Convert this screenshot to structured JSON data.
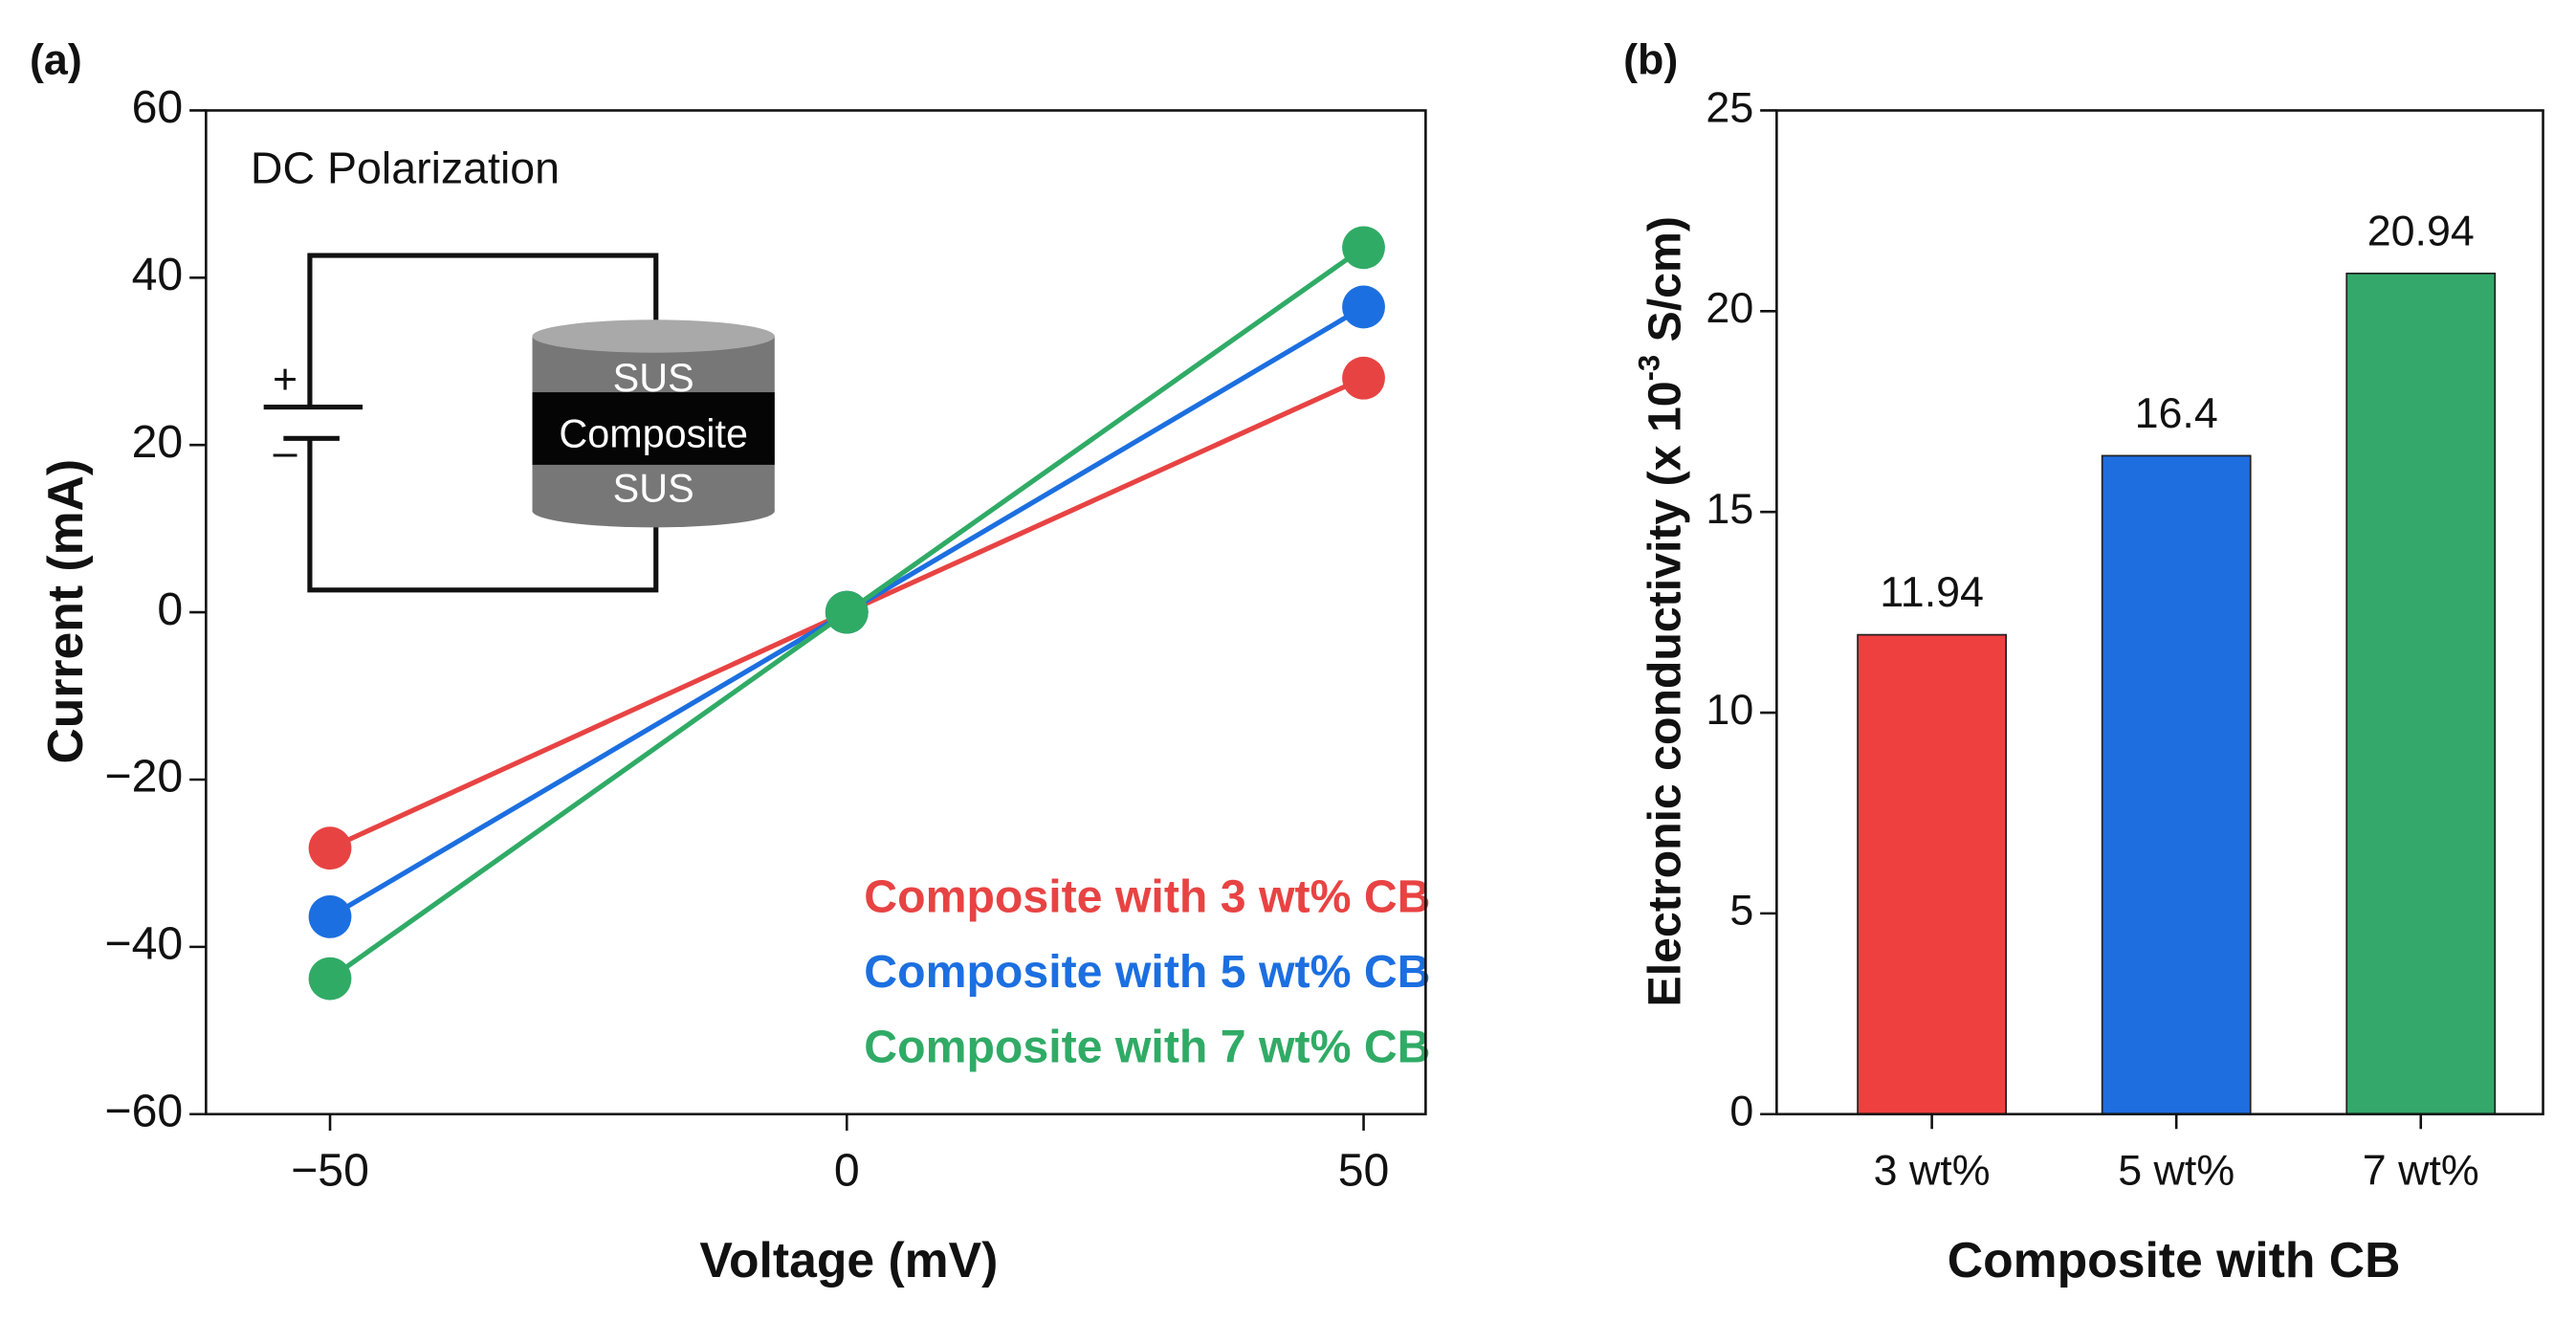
{
  "chart_data": [
    {
      "type": "line",
      "panel_label": "(a)",
      "xlabel": "Voltage (mV)",
      "ylabel": "Current (mA)",
      "annotations": {
        "inset_title": "DC Polarization",
        "plus": "+",
        "minus": "–",
        "top_layer": "SUS",
        "middle_layer": "Composite",
        "bottom_layer": "SUS"
      },
      "x": [
        -50,
        0,
        50
      ],
      "series": [
        {
          "name": "Composite with 3 wt% CB",
          "color": "#e84343",
          "values": [
            -28.2,
            0,
            28
          ]
        },
        {
          "name": "Composite with 5 wt% CB",
          "color": "#1c6fe0",
          "values": [
            -36.4,
            0,
            36.5
          ]
        },
        {
          "name": "Composite with 7 wt% CB",
          "color": "#30ab66",
          "values": [
            -43.8,
            0,
            43.6
          ]
        }
      ],
      "xlim": [
        -62,
        56
      ],
      "xticks": [
        {
          "value": -50,
          "label": "−50"
        },
        0,
        50
      ],
      "ylim": [
        -60,
        60
      ],
      "yticks": [
        {
          "value": -60,
          "label": "−60"
        },
        {
          "value": -40,
          "label": "−40"
        },
        {
          "value": -20,
          "label": "−20"
        },
        0,
        20,
        40,
        60
      ],
      "legend": "lower right"
    },
    {
      "type": "bar",
      "panel_label": "(b)",
      "xlabel": "Composite with CB",
      "ylabel": [
        "Electronic conductivity (x 10",
        "-3",
        " S/cm)"
      ],
      "categories": [
        "3 wt%",
        "5 wt%",
        "7 wt%"
      ],
      "values": [
        11.94,
        16.4,
        20.94
      ],
      "colors": [
        "#ef4040",
        "#1f6ee0",
        "#33a86a"
      ],
      "ylim": [
        0,
        25
      ],
      "yticks": [
        0,
        5,
        10,
        15,
        20,
        25
      ]
    }
  ]
}
